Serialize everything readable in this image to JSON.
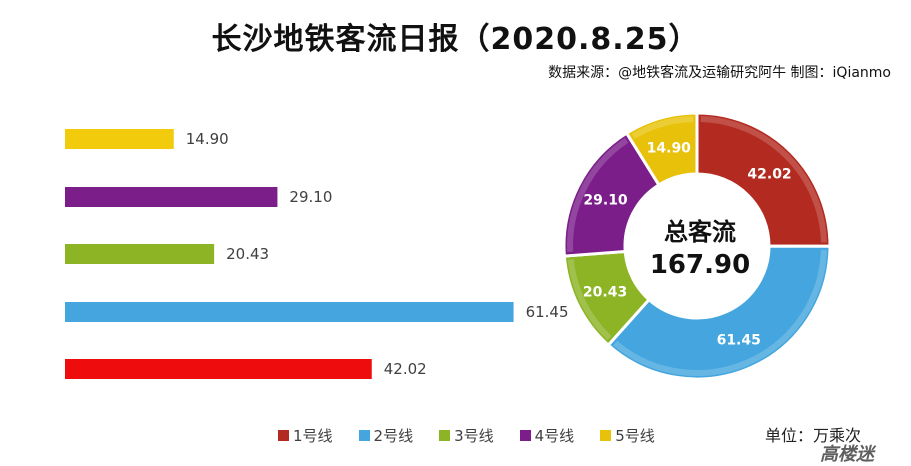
{
  "title": "长沙地铁客流日报（2020.8.25）",
  "source": "数据来源：@地铁客流及运输研究阿牛  制图：iQianmo",
  "unit": "单位：万乘次",
  "watermark": "高楼迷",
  "center": {
    "title": "总客流",
    "value": "167.90"
  },
  "chart_data": [
    {
      "type": "bar",
      "orientation": "horizontal",
      "categories": [
        "5号线",
        "4号线",
        "3号线",
        "2号线",
        "1号线"
      ],
      "values": [
        14.9,
        29.1,
        20.43,
        61.45,
        42.02
      ],
      "value_labels": [
        "14.90",
        "29.10",
        "20.43",
        "61.45",
        "42.02"
      ],
      "colors": [
        "#f2cc0c",
        "#7b1e8a",
        "#8cb424",
        "#45a6df",
        "#ee0c0c"
      ],
      "xlim": [
        0,
        70
      ]
    },
    {
      "type": "pie",
      "style": "donut",
      "categories": [
        "1号线",
        "2号线",
        "3号线",
        "4号线",
        "5号线"
      ],
      "values": [
        42.02,
        61.45,
        20.43,
        29.1,
        14.9
      ],
      "value_labels": [
        "42.02",
        "61.45",
        "20.43",
        "29.10",
        "14.90"
      ],
      "colors": [
        "#b22a20",
        "#45a6df",
        "#8cb424",
        "#7b1e8a",
        "#e8c20a"
      ],
      "total": 167.9
    }
  ],
  "legend": [
    {
      "label": "1号线",
      "color": "#b22a20"
    },
    {
      "label": "2号线",
      "color": "#45a6df"
    },
    {
      "label": "3号线",
      "color": "#8cb424"
    },
    {
      "label": "4号线",
      "color": "#7b1e8a"
    },
    {
      "label": "5号线",
      "color": "#e8c20a"
    }
  ]
}
